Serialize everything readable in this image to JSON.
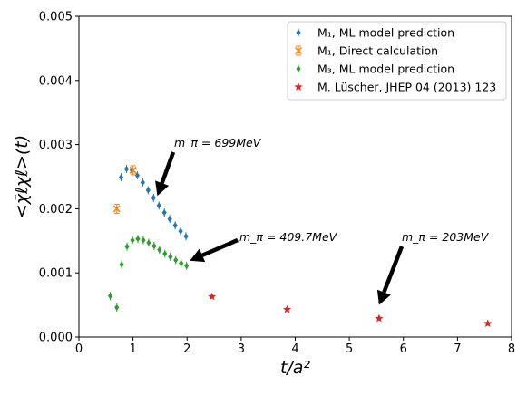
{
  "chart_data": {
    "type": "scatter",
    "xlabel": "t/a²",
    "ylabel": "<χ̄ℓχℓ>(t)",
    "xlim": [
      0,
      8
    ],
    "ylim": [
      0,
      0.005
    ],
    "x_ticks": [
      "0",
      "1",
      "2",
      "3",
      "4",
      "5",
      "6",
      "7",
      "8"
    ],
    "y_ticks": [
      "0.000",
      "0.001",
      "0.002",
      "0.003",
      "0.004",
      "0.005"
    ],
    "grid": false,
    "legend_position": "top-right",
    "series": [
      {
        "name": "M₁, ML model prediction",
        "color": "#1f77b4",
        "marker": "diamond",
        "points": [
          [
            0.78,
            0.00249
          ],
          [
            0.88,
            0.00262
          ],
          [
            0.98,
            0.0026
          ],
          [
            1.08,
            0.00252
          ],
          [
            1.18,
            0.00241
          ],
          [
            1.28,
            0.00229
          ],
          [
            1.38,
            0.00217
          ],
          [
            1.48,
            0.00205
          ],
          [
            1.58,
            0.00194
          ],
          [
            1.68,
            0.00184
          ],
          [
            1.78,
            0.00174
          ],
          [
            1.88,
            0.00165
          ],
          [
            1.98,
            0.00157
          ]
        ]
      },
      {
        "name": "M₁, Direct calculation",
        "color": "#ff7f0e",
        "marker": "x-errorbar",
        "points": [
          [
            0.7,
            0.002
          ],
          [
            1.0,
            0.0026
          ]
        ]
      },
      {
        "name": "M₃, ML model prediction",
        "color": "#2ca02c",
        "marker": "diamond",
        "points": [
          [
            0.58,
            0.00064
          ],
          [
            0.7,
            0.00046
          ],
          [
            0.79,
            0.00113
          ],
          [
            0.89,
            0.00141
          ],
          [
            0.99,
            0.00151
          ],
          [
            1.09,
            0.00153
          ],
          [
            1.19,
            0.00151
          ],
          [
            1.29,
            0.00147
          ],
          [
            1.39,
            0.00142
          ],
          [
            1.49,
            0.00136
          ],
          [
            1.59,
            0.0013
          ],
          [
            1.69,
            0.00125
          ],
          [
            1.79,
            0.0012
          ],
          [
            1.89,
            0.00115
          ],
          [
            1.99,
            0.00111
          ]
        ]
      },
      {
        "name": "M. Lüscher, JHEP 04 (2013) 123",
        "color": "#d62728",
        "marker": "star",
        "points": [
          [
            2.46,
            0.00063
          ],
          [
            3.85,
            0.00043
          ],
          [
            5.55,
            0.00029
          ],
          [
            7.56,
            0.00021
          ]
        ]
      }
    ],
    "annotations": [
      {
        "text": "m_π = 699MeV",
        "arrow_to": [
          1.45,
          0.0022
        ]
      },
      {
        "text": "m_π = 409.7MeV",
        "arrow_to": [
          2.05,
          0.00119
        ]
      },
      {
        "text": "m_π = 203MeV",
        "arrow_to": [
          5.55,
          0.0005
        ]
      }
    ]
  }
}
